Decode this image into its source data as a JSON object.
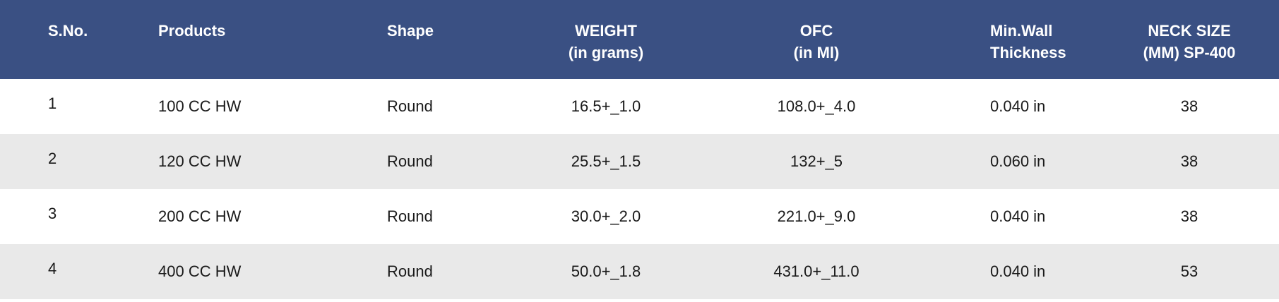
{
  "table": {
    "header": [
      [
        "S.No."
      ],
      [
        "Products"
      ],
      [
        "Shape"
      ],
      [
        "WEIGHT",
        "(in grams)"
      ],
      [
        "OFC",
        "(in Ml)"
      ],
      [
        "Min.Wall",
        "Thickness"
      ],
      [
        "NECK SIZE",
        "(MM) SP-400"
      ]
    ],
    "rows": [
      [
        "1",
        "100 CC HW",
        "Round",
        "16.5+_1.0",
        "108.0+_4.0",
        "0.040 in",
        "38"
      ],
      [
        "2",
        "120 CC HW",
        "Round",
        "25.5+_1.5",
        "132+_5",
        "0.060 in",
        "38"
      ],
      [
        "3",
        "200 CC HW",
        "Round",
        "30.0+_2.0",
        "221.0+_9.0",
        "0.040 in",
        "38"
      ],
      [
        "4",
        "400 CC HW",
        "Round",
        "50.0+_1.8",
        "431.0+_11.0",
        "0.040 in",
        "53"
      ]
    ]
  }
}
